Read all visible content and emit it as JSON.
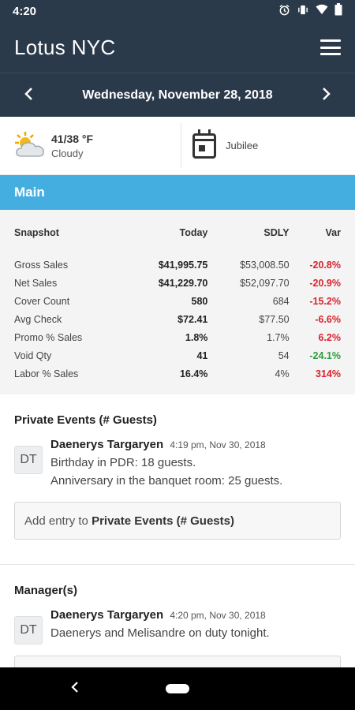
{
  "status_bar": {
    "time": "4:20"
  },
  "app": {
    "title": "Lotus NYC"
  },
  "date_bar": {
    "date": "Wednesday, November 28, 2018"
  },
  "weather": {
    "temp": "41/38 °F",
    "condition": "Cloudy"
  },
  "holiday": {
    "label": "Jubilee"
  },
  "main_section": {
    "title": "Main"
  },
  "snapshot": {
    "headers": [
      "Snapshot",
      "Today",
      "SDLY",
      "Var"
    ],
    "rows": [
      {
        "label": "Gross Sales",
        "today": "$41,995.75",
        "sdly": "$53,008.50",
        "var": "-20.8%",
        "var_status": "negative"
      },
      {
        "label": "Net Sales",
        "today": "$41,229.70",
        "sdly": "$52,097.70",
        "var": "-20.9%",
        "var_status": "negative"
      },
      {
        "label": "Cover Count",
        "today": "580",
        "sdly": "684",
        "var": "-15.2%",
        "var_status": "negative"
      },
      {
        "label": "Avg Check",
        "today": "$72.41",
        "sdly": "$77.50",
        "var": "-6.6%",
        "var_status": "negative"
      },
      {
        "label": "Promo % Sales",
        "today": "1.8%",
        "sdly": "1.7%",
        "var": "6.2%",
        "var_status": "negative"
      },
      {
        "label": "Void Qty",
        "today": "41",
        "sdly": "54",
        "var": "-24.1%",
        "var_status": "positive"
      },
      {
        "label": "Labor % Sales",
        "today": "16.4%",
        "sdly": "4%",
        "var": "314%",
        "var_status": "negative"
      }
    ]
  },
  "private_events": {
    "title": "Private Events (# Guests)",
    "entry": {
      "initials": "DT",
      "author": "Daenerys Targaryen",
      "time": "4:19 pm, Nov 30, 2018",
      "lines": [
        "Birthday in PDR: 18 guests.",
        "Anniversary in the banquet room: 25 guests."
      ]
    },
    "add_prefix": "Add entry to ",
    "add_target": "Private Events (# Guests)"
  },
  "managers": {
    "title": "Manager(s)",
    "entry": {
      "initials": "DT",
      "author": "Daenerys Targaryen",
      "time": "4:20 pm, Nov 30, 2018",
      "lines": [
        "Daenerys and Melisandre on duty tonight."
      ]
    }
  },
  "colors": {
    "header": "#2b3a4a",
    "section": "#45aee1",
    "negative": "#d9232d",
    "positive": "#2a9d3d"
  },
  "icons": [
    "alarm-icon",
    "vibrate-icon",
    "wifi-icon",
    "battery-icon",
    "menu-icon",
    "chevron-left-icon",
    "chevron-right-icon",
    "cloudy-sun-icon",
    "calendar-icon",
    "back-icon",
    "home-icon"
  ]
}
